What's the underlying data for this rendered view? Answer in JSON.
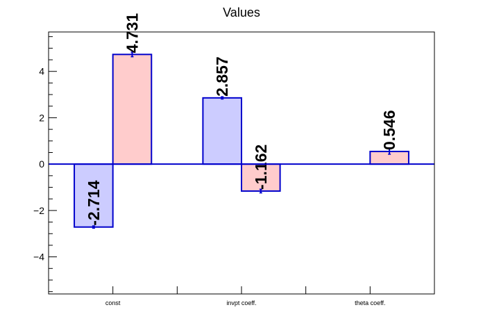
{
  "chart_data": {
    "type": "bar",
    "title": "Values",
    "xlabel": "",
    "ylabel": "",
    "categories": [
      "const",
      "invpt coeff.",
      "theta coeff."
    ],
    "ylim": [
      -5.6,
      5.7
    ],
    "yticks": [
      -4,
      -2,
      0,
      2,
      4
    ],
    "yticks_labels": [
      "−4",
      "−2",
      "0",
      "2",
      "4"
    ],
    "grid": false,
    "bars": [
      {
        "category": "const",
        "slot": 0,
        "value": -2.714,
        "error": 0.05,
        "label": "-2.714",
        "fill": "#ccccff"
      },
      {
        "category": "const",
        "slot": 1,
        "value": 4.731,
        "error": 0.1,
        "label": "4.731",
        "fill": "#ffcccc"
      },
      {
        "category": "invpt coeff.",
        "slot": 0,
        "value": 2.857,
        "error": 0.05,
        "label": "2.857",
        "fill": "#ccccff"
      },
      {
        "category": "invpt coeff.",
        "slot": 1,
        "value": -1.162,
        "error": 0.08,
        "label": "-1.162",
        "fill": "#ffcccc"
      },
      {
        "category": "theta coeff.",
        "slot": 1,
        "value": 0.546,
        "error": 0.12,
        "label": "0.546",
        "fill": "#ffcccc"
      }
    ],
    "colors": {
      "bar_edge": "#0000cc",
      "series_a_fill": "#ccccff",
      "series_b_fill": "#ffcccc",
      "axis": "#000000",
      "zero_line": "#0000cc"
    }
  }
}
